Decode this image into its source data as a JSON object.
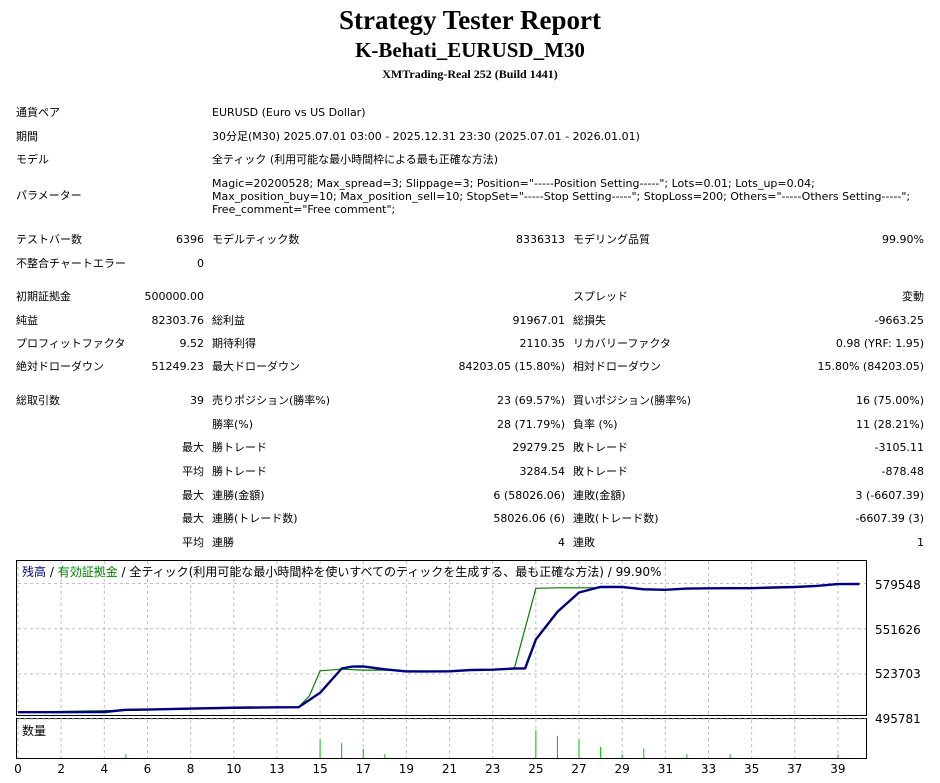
{
  "header": {
    "title": "Strategy Tester Report",
    "subtitle": "K-Behati_EURUSD_M30",
    "build": "XMTrading-Real 252 (Build 1441)"
  },
  "info": {
    "symbol_label": "通貨ペア",
    "symbol_value": "EURUSD (Euro vs US Dollar)",
    "period_label": "期間",
    "period_value": "30分足(M30) 2025.07.01 03:00 - 2025.12.31 23:30 (2025.07.01 - 2026.01.01)",
    "model_label": "モデル",
    "model_value": "全ティック (利用可能な最小時間枠による最も正確な方法)",
    "params_label": "パラメーター",
    "params_value": "Magic=20200528; Max_spread=3; Slippage=3; Position=\"-----Position Setting-----\"; Lots=0.01; Lots_up=0.04; Max_position_buy=10; Max_position_sell=10; StopSet=\"-----Stop Setting-----\"; StopLoss=200; Others=\"-----Others Setting-----\"; Free_comment=\"Free comment\";"
  },
  "stats": {
    "bars_label": "テストバー数",
    "bars_value": "6396",
    "ticks_label": "モデルティック数",
    "ticks_value": "8336313",
    "quality_label": "モデリング品質",
    "quality_value": "99.90%",
    "mismatch_label": "不整合チャートエラー",
    "mismatch_value": "0",
    "deposit_label": "初期証拠金",
    "deposit_value": "500000.00",
    "spread_label": "スプレッド",
    "spread_value": "変動",
    "net_label": "純益",
    "net_value": "82303.76",
    "gross_profit_label": "総利益",
    "gross_profit_value": "91967.01",
    "gross_loss_label": "総損失",
    "gross_loss_value": "-9663.25",
    "pf_label": "プロフィットファクタ",
    "pf_value": "9.52",
    "expected_label": "期待利得",
    "expected_value": "2110.35",
    "recovery_label": "リカバリーファクタ",
    "recovery_value": "0.98 (YRF: 1.95)",
    "abs_dd_label": "絶対ドローダウン",
    "abs_dd_value": "51249.23",
    "max_dd_label": "最大ドローダウン",
    "max_dd_value": "84203.05 (15.80%)",
    "rel_dd_label": "相対ドローダウン",
    "rel_dd_value": "15.80% (84203.05)",
    "trades_label": "総取引数",
    "trades_value": "39",
    "short_label": "売りポジション(勝率%)",
    "short_value": "23 (69.57%)",
    "long_label": "買いポジション(勝率%)",
    "long_value": "16 (75.00%)",
    "winrate_label": "勝率(%)",
    "winrate_value": "28 (71.79%)",
    "lossrate_label": "負率 (%)",
    "lossrate_value": "11 (28.21%)",
    "max_word": "最大",
    "avg_word": "平均",
    "largest_win_label": "勝トレード",
    "largest_win_value": "29279.25",
    "largest_loss_label": "敗トレード",
    "largest_loss_value": "-3105.11",
    "avg_win_label": "勝トレード",
    "avg_win_value": "3284.54",
    "avg_loss_label": "敗トレード",
    "avg_loss_value": "-878.48",
    "max_consec_win_label": "連勝(金額)",
    "max_consec_win_value": "6 (58026.06)",
    "max_consec_loss_label": "連敗(金額)",
    "max_consec_loss_value": "3 (-6607.39)",
    "max_consec_profit_label": "連勝(トレード数)",
    "max_consec_profit_value": "58026.06 (6)",
    "max_consec_lossamt_label": "連敗(トレード数)",
    "max_consec_lossamt_value": "-6607.39 (3)",
    "avg_consec_win_label": "連勝",
    "avg_consec_win_value": "4",
    "avg_consec_loss_label": "連敗",
    "avg_consec_loss_value": "1"
  },
  "chart": {
    "legend_balance": "残高",
    "legend_sep1": " / ",
    "legend_equity": "有効証拠金",
    "legend_rest": " / 全ティック(利用可能な最小時間枠を使いすべてのティックを生成する、最も正確な方法) / 99.90%",
    "volume_label": "数量",
    "balance_color": "#000080",
    "equity_color": "#008000",
    "grid_color": "#c0c0c0"
  },
  "chart_data": {
    "type": "line",
    "ylim": [
      495781,
      593500
    ],
    "xlim": [
      0,
      39.3
    ],
    "yticks": [
      "579548",
      "551626",
      "523703",
      "495781"
    ],
    "ytick_values": [
      579548,
      551626,
      523703,
      495781
    ],
    "xticks": [
      "0",
      "2",
      "4",
      "6",
      "8",
      "10",
      "13",
      "15",
      "17",
      "19",
      "21",
      "23",
      "25",
      "27",
      "29",
      "31",
      "33",
      "35",
      "37",
      "39"
    ],
    "xtick_positions": [
      0,
      2,
      4,
      6,
      8,
      10,
      12,
      14,
      16,
      18,
      20,
      22,
      24,
      26,
      28,
      30,
      32,
      34,
      36,
      38
    ],
    "series": [
      {
        "name": "残高",
        "values": [
          [
            0,
            500000
          ],
          [
            2,
            500000
          ],
          [
            4,
            500100
          ],
          [
            5,
            501500
          ],
          [
            6,
            501600
          ],
          [
            8,
            502200
          ],
          [
            10,
            502800
          ],
          [
            12,
            503000
          ],
          [
            13,
            503100
          ],
          [
            14,
            512000
          ],
          [
            15,
            527000
          ],
          [
            15.5,
            528200
          ],
          [
            16,
            528300
          ],
          [
            17,
            526500
          ],
          [
            18,
            525200
          ],
          [
            19,
            525200
          ],
          [
            20,
            525300
          ],
          [
            21,
            526100
          ],
          [
            22,
            526300
          ],
          [
            23,
            527000
          ],
          [
            23.5,
            527100
          ],
          [
            24,
            545000
          ],
          [
            25,
            562000
          ],
          [
            26,
            574000
          ],
          [
            27,
            577500
          ],
          [
            28,
            577400
          ],
          [
            29,
            576000
          ],
          [
            30,
            575700
          ],
          [
            31,
            576400
          ],
          [
            32,
            576600
          ],
          [
            33,
            576700
          ],
          [
            34,
            576700
          ],
          [
            35,
            577100
          ],
          [
            36,
            577400
          ],
          [
            37,
            578100
          ],
          [
            38,
            579200
          ],
          [
            39,
            579300
          ]
        ]
      },
      {
        "name": "有効証拠金",
        "values": [
          [
            0,
            500000
          ],
          [
            13,
            503100
          ],
          [
            13.5,
            510000
          ],
          [
            14,
            525600
          ],
          [
            15,
            526600
          ],
          [
            16,
            526000
          ],
          [
            17,
            526000
          ],
          [
            18,
            525600
          ],
          [
            19,
            525400
          ],
          [
            20,
            525600
          ],
          [
            21,
            526200
          ],
          [
            22,
            526300
          ],
          [
            23,
            527000
          ],
          [
            24,
            576600
          ],
          [
            25,
            576900
          ],
          [
            26,
            576900
          ],
          [
            27,
            577000
          ],
          [
            28,
            577300
          ],
          [
            29,
            576300
          ],
          [
            30,
            576000
          ],
          [
            31,
            576400
          ],
          [
            32,
            576600
          ],
          [
            33,
            576700
          ],
          [
            34,
            576700
          ],
          [
            35,
            577100
          ],
          [
            36,
            577400
          ],
          [
            37,
            578100
          ],
          [
            38,
            579200
          ],
          [
            39,
            579300
          ]
        ]
      }
    ],
    "volume": [
      [
        5,
        0.1
      ],
      [
        14,
        0.5
      ],
      [
        15,
        0.4
      ],
      [
        16,
        0.25
      ],
      [
        17,
        0.1
      ],
      [
        24,
        0.75
      ],
      [
        25,
        0.6
      ],
      [
        26,
        0.5
      ],
      [
        27,
        0.3
      ],
      [
        28,
        0.1
      ],
      [
        29,
        0.25
      ],
      [
        31,
        0.1
      ],
      [
        33,
        0.1
      ],
      [
        38,
        0.1
      ]
    ]
  }
}
